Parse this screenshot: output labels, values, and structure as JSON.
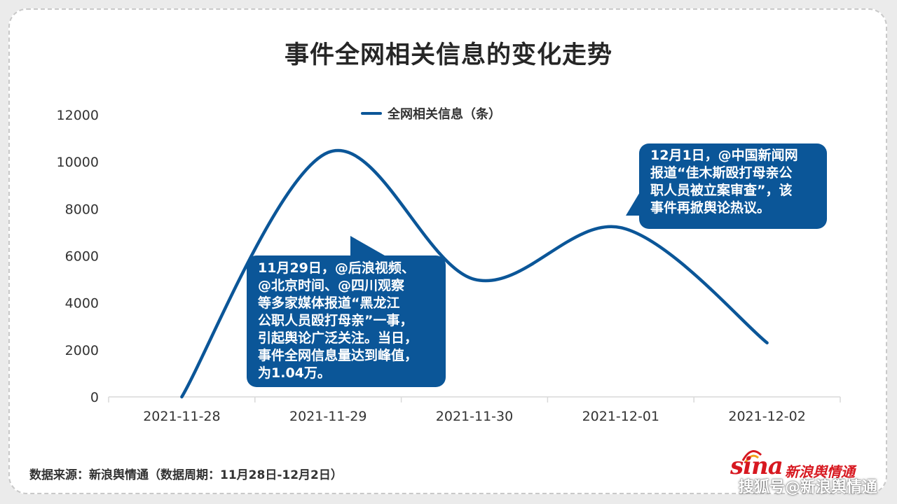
{
  "title": "事件全网相关信息的变化走势",
  "chart_data": {
    "type": "line",
    "smooth": true,
    "categories": [
      "2021-11-28",
      "2021-11-29",
      "2021-11-30",
      "2021-12-01",
      "2021-12-02"
    ],
    "series": [
      {
        "name": "全网相关信息（条）",
        "values": [
          0,
          10400,
          5000,
          7200,
          2300
        ],
        "color": "#0b5698"
      }
    ],
    "y_ticks": [
      "0",
      "2000",
      "4000",
      "6000",
      "8000",
      "10000",
      "12000"
    ],
    "ylim": [
      0,
      12000
    ],
    "legend_position": "top-center",
    "grid": false
  },
  "annotations": [
    {
      "lines": [
        "11月29日，@后浪视频、",
        "@北京时间、@四川观察",
        "等多家媒体报道“黑龙江",
        "公职人员殴打母亲”一事，",
        "引起舆论广泛关注。当日，",
        "事件全网信息量达到峰值，",
        "为1.04万。"
      ]
    },
    {
      "lines": [
        "12月1日，@中国新闻网",
        "报道“佳木斯殴打母亲公",
        "职人员被立案审查”，该",
        "事件再掀舆论热议。"
      ]
    }
  ],
  "footer": {
    "source": "数据来源：新浪舆情通（数据周期：11月28日-12月2日）"
  },
  "brand": {
    "logo_text": "sina",
    "name": "新浪舆情通",
    "color": "#d71820"
  },
  "watermark": "搜狐号@新浪舆情通"
}
